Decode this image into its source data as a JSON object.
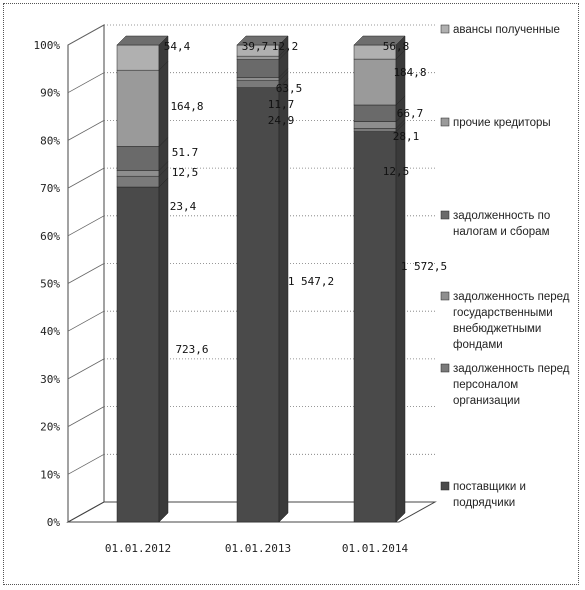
{
  "chart_data": {
    "type": "bar",
    "stacked": "percent",
    "categories": [
      "01.01.2012",
      "01.01.2013",
      "01.01.2014"
    ],
    "y_ticks": [
      "0%",
      "10%",
      "20%",
      "30%",
      "40%",
      "50%",
      "60%",
      "70%",
      "80%",
      "90%",
      "100%"
    ],
    "ylim": [
      0,
      100
    ],
    "legend_position": "right",
    "series": [
      {
        "name": "поставщики и подрядчики",
        "values": [
          723.6,
          1547.2,
          1572.5
        ]
      },
      {
        "name": "задолженность перед персоналом организации",
        "values": [
          23.4,
          24.9,
          12.5
        ]
      },
      {
        "name": "задолженность перед государственными внебюджетными фондами",
        "values": [
          12.5,
          11.7,
          28.1
        ]
      },
      {
        "name": "задолженность по налогам и сборам",
        "values": [
          51.7,
          63.5,
          66.7
        ]
      },
      {
        "name": "прочие кредиторы",
        "values": [
          164.8,
          12.2,
          184.8
        ]
      },
      {
        "name": "авансы полученные",
        "values": [
          54.4,
          39.7,
          56.8
        ]
      }
    ],
    "value_labels": [
      [
        "723,6",
        "23,4",
        "12,5",
        "51.7",
        "164,8",
        "54,4"
      ],
      [
        "1 547,2",
        "24,9",
        "11,7",
        "63,5",
        "12,2",
        "39,7"
      ],
      [
        "1 572,5",
        "12,5",
        "28,1",
        "66,7",
        "184,8",
        "56,8"
      ]
    ],
    "legend_lines": [
      [
        "авансы полученные"
      ],
      [
        "прочие кредиторы"
      ],
      [
        "задолженность по",
        "налогам и сборам"
      ],
      [
        "задолженность перед",
        "государственными",
        "внебюджетными",
        "фондами"
      ],
      [
        "задолженность перед",
        "персоналом",
        "организации"
      ],
      [
        "поставщики и",
        "подрядчики"
      ]
    ],
    "colors": [
      "#4a4a4a",
      "#7a7a7a",
      "#8e8e8e",
      "#6a6a6a",
      "#9a9a9a",
      "#b0b0b0"
    ]
  }
}
